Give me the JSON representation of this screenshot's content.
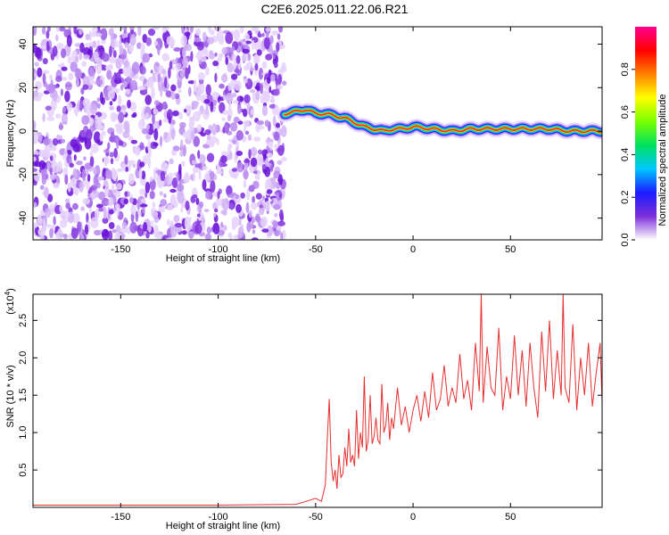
{
  "title": "C2E6.2025.011.22.06.R21",
  "chart_data": [
    {
      "type": "heatmap",
      "xlabel": "Height of straight line (km)",
      "ylabel": "Frequency (Hz)",
      "xlim": [
        -195,
        97
      ],
      "ylim": [
        -50,
        48
      ],
      "xticks": [
        -150,
        -100,
        -50,
        0,
        50
      ],
      "yticks": [
        -40,
        -20,
        0,
        20,
        40
      ],
      "noise_region_x": [
        -195,
        -66
      ],
      "ridge": {
        "x": [
          -66,
          -60,
          -55,
          -50,
          -45,
          -40,
          -35,
          -30,
          -25,
          -20,
          -15,
          -10,
          -5,
          0,
          10,
          20,
          30,
          40,
          50,
          60,
          70,
          80,
          90,
          97
        ],
        "freq": [
          8,
          9,
          10,
          8,
          8,
          7,
          6,
          4,
          2,
          1,
          0,
          1,
          1,
          2,
          1,
          0,
          1,
          1,
          1,
          1,
          1,
          0,
          0,
          0
        ]
      },
      "colorbar": {
        "label": "Normalized spectral amplitude",
        "ticks": [
          "0.0",
          "0.2",
          "0.4",
          "0.6",
          "0.8"
        ],
        "range": [
          0,
          1
        ],
        "colors": [
          "#ffffff",
          "#7b2fd9",
          "#1b1bff",
          "#00c8ff",
          "#00e060",
          "#7bff00",
          "#ffff00",
          "#ff8000",
          "#ff0000",
          "#ff0090"
        ]
      }
    },
    {
      "type": "line",
      "xlabel": "Height of straight line (km)",
      "ylabel": "SNR (10 * v/v)",
      "multiplier": "(x10",
      "multiplier_exp": "4",
      "multiplier_close": ")",
      "xlim": [
        -195,
        97
      ],
      "ylim": [
        0,
        2.85
      ],
      "xticks": [
        -150,
        -100,
        -50,
        0,
        50
      ],
      "yticks": [
        0.5,
        1.0,
        1.5,
        2.0,
        2.5
      ],
      "ytick_labels": [
        "0.5",
        "1.0",
        "1.5",
        "2.0",
        "2.5"
      ],
      "series": [
        {
          "color": "#e53030",
          "x": [
            -195,
            -150,
            -100,
            -60,
            -55,
            -50,
            -47,
            -45,
            -44,
            -43,
            -42,
            -41,
            -40,
            -39,
            -38,
            -37,
            -36,
            -35,
            -34,
            -33,
            -32,
            -31,
            -30,
            -29,
            -28,
            -27,
            -26,
            -25,
            -24,
            -23,
            -22,
            -21,
            -20,
            -19,
            -18,
            -17,
            -16,
            -15,
            -14,
            -13,
            -12,
            -11,
            -10,
            -8,
            -6,
            -4,
            -2,
            0,
            2,
            4,
            6,
            8,
            10,
            12,
            14,
            16,
            18,
            20,
            22,
            24,
            26,
            28,
            30,
            32,
            34,
            35,
            36,
            38,
            40,
            42,
            44,
            46,
            48,
            50,
            52,
            54,
            56,
            58,
            60,
            62,
            64,
            66,
            68,
            70,
            72,
            74,
            76,
            77,
            78,
            80,
            82,
            84,
            86,
            88,
            90,
            92,
            94,
            96,
            97
          ],
          "values": [
            0.03,
            0.03,
            0.03,
            0.04,
            0.08,
            0.12,
            0.08,
            0.3,
            0.9,
            1.45,
            0.6,
            0.35,
            0.5,
            0.25,
            0.7,
            0.4,
            0.45,
            0.8,
            0.55,
            1.05,
            0.6,
            0.7,
            0.55,
            1.3,
            0.65,
            1.0,
            0.8,
            1.75,
            0.75,
            0.9,
            1.5,
            0.85,
            0.95,
            1.2,
            0.9,
            0.85,
            1.65,
            1.0,
            1.1,
            1.4,
            0.9,
            1.2,
            1.05,
            1.6,
            1.1,
            1.35,
            1.0,
            1.3,
            1.5,
            1.15,
            1.55,
            1.2,
            1.8,
            1.3,
            1.45,
            1.9,
            1.35,
            1.6,
            1.4,
            2.05,
            1.45,
            1.7,
            1.3,
            2.2,
            1.55,
            2.85,
            1.4,
            2.15,
            1.6,
            1.5,
            2.4,
            1.3,
            1.75,
            1.45,
            2.3,
            1.5,
            2.1,
            1.35,
            2.2,
            1.6,
            1.2,
            2.35,
            1.55,
            2.5,
            1.45,
            2.1,
            1.5,
            2.85,
            1.6,
            1.4,
            2.45,
            1.3,
            2.0,
            1.5,
            2.2,
            1.35,
            1.8,
            2.2,
            1.4
          ]
        }
      ]
    }
  ]
}
